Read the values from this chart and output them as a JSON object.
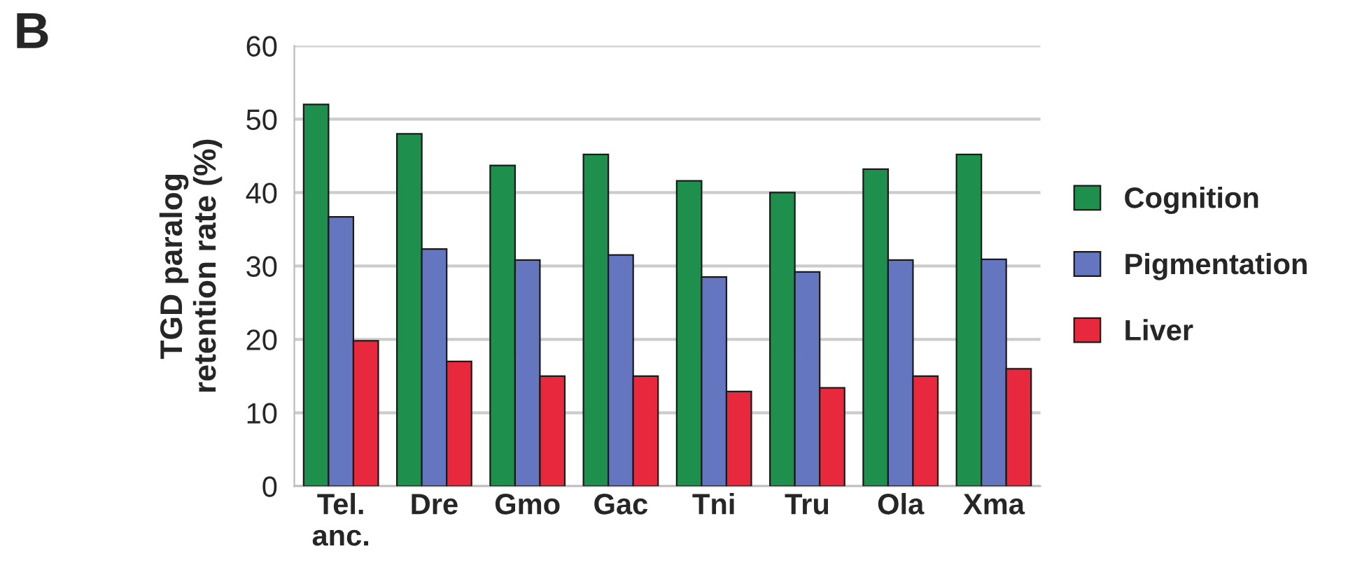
{
  "chart_data": {
    "type": "bar",
    "ylabel": "TGD paralog\nretention rate (%)",
    "annotations": [
      "B"
    ],
    "categories": [
      "Tel.\nanc.",
      "Dre",
      "Gmo",
      "Gac",
      "Tni",
      "Tru",
      "Ola",
      "Xma"
    ],
    "series": [
      {
        "name": "Cognition",
        "color": "#1f8f4e",
        "values": [
          52,
          48,
          43.7,
          45.2,
          41.6,
          40,
          43.2,
          45.2
        ]
      },
      {
        "name": "Pigmentation",
        "color": "#6376bf",
        "values": [
          36.7,
          32.3,
          30.8,
          31.5,
          28.5,
          29.2,
          30.8,
          30.9
        ]
      },
      {
        "name": "Liver",
        "color": "#e8283c",
        "values": [
          19.8,
          17,
          15,
          15,
          12.9,
          13.4,
          15,
          16
        ]
      }
    ],
    "ylim": [
      0,
      60
    ],
    "yticks": [
      0,
      10,
      20,
      30,
      40,
      50,
      60
    ],
    "grid": "y",
    "legend": "right"
  }
}
